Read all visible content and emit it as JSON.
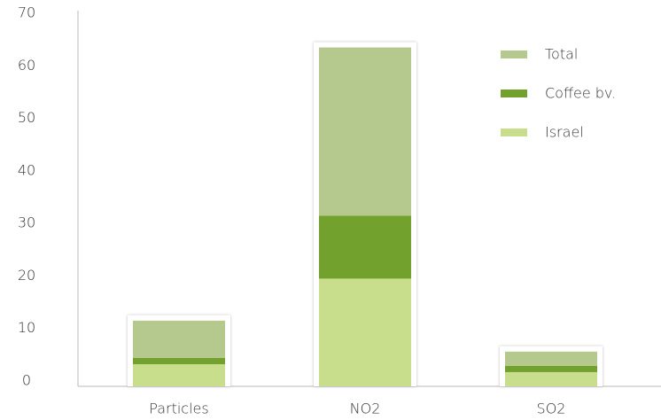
{
  "chart_data": {
    "type": "stacked_bar",
    "categories": [
      "Particles",
      "NO2",
      "SO2"
    ],
    "series": [
      {
        "name": "Israel",
        "color": "#c9de8c",
        "values": [
          3.7,
          20,
          2.2
        ]
      },
      {
        "name": "Coffee bv.",
        "color": "#73a12e",
        "values": [
          1.2,
          12,
          1.2
        ]
      },
      {
        "name": "Total",
        "color": "#b5c98e",
        "values": [
          7.1,
          32,
          2.7
        ]
      }
    ],
    "ylim": [
      0,
      70
    ],
    "yticks": [
      0,
      10,
      20,
      30,
      40,
      50,
      60,
      70
    ]
  }
}
